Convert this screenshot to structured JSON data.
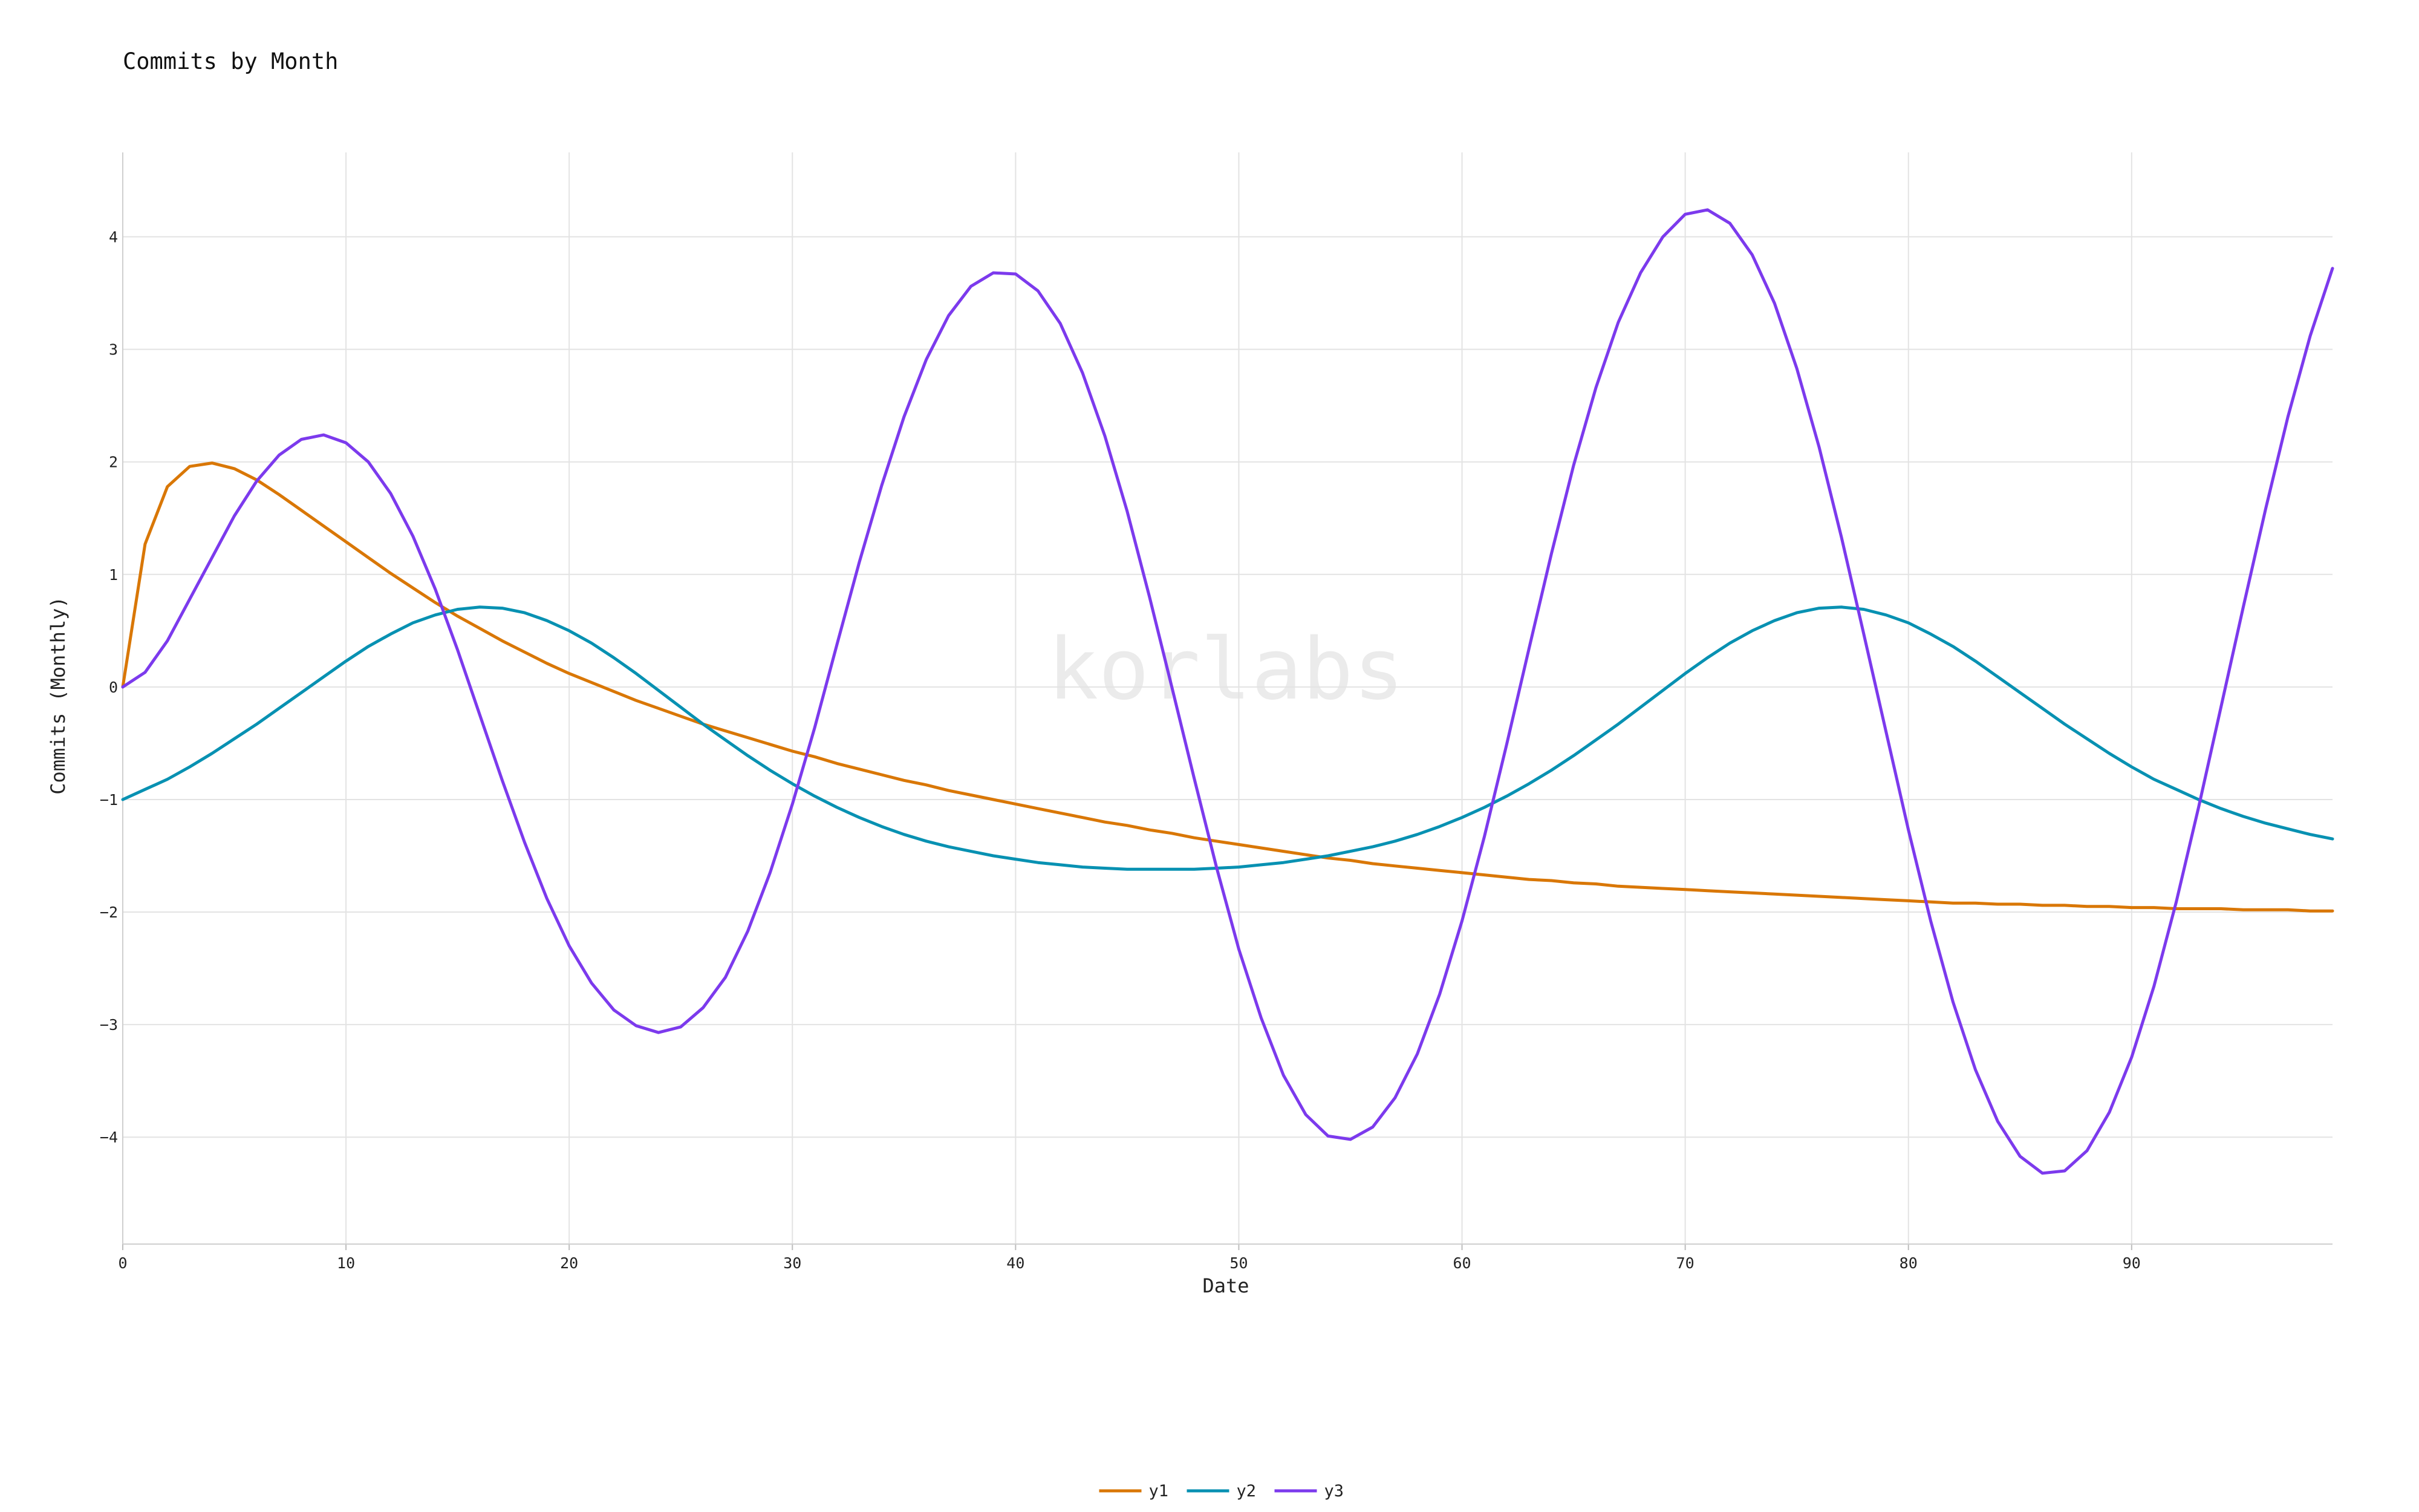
{
  "chart_data": {
    "type": "line",
    "title": "Commits by Month",
    "xlabel": "Date",
    "ylabel": "Commits (Monthly)",
    "watermark": "korlabs",
    "xlim": [
      0,
      99
    ],
    "ylim": [
      -4.95,
      4.75
    ],
    "x_ticks": [
      0,
      10,
      20,
      30,
      40,
      50,
      60,
      70,
      80,
      90
    ],
    "y_ticks": [
      -4,
      -3,
      -2,
      -1,
      0,
      1,
      2,
      3,
      4
    ],
    "y_tick_labels": [
      "−4",
      "−3",
      "−2",
      "−1",
      "0",
      "1",
      "2",
      "3",
      "4"
    ],
    "grid": true,
    "legend_position": "bottom-center",
    "x": [
      0,
      1,
      2,
      3,
      4,
      5,
      6,
      7,
      8,
      9,
      10,
      11,
      12,
      13,
      14,
      15,
      16,
      17,
      18,
      19,
      20,
      21,
      22,
      23,
      24,
      25,
      26,
      27,
      28,
      29,
      30,
      31,
      32,
      33,
      34,
      35,
      36,
      37,
      38,
      39,
      40,
      41,
      42,
      43,
      44,
      45,
      46,
      47,
      48,
      49,
      50,
      51,
      52,
      53,
      54,
      55,
      56,
      57,
      58,
      59,
      60,
      61,
      62,
      63,
      64,
      65,
      66,
      67,
      68,
      69,
      70,
      71,
      72,
      73,
      74,
      75,
      76,
      77,
      78,
      79,
      80,
      81,
      82,
      83,
      84,
      85,
      86,
      87,
      88,
      89,
      90,
      91,
      92,
      93,
      94,
      95,
      96,
      97,
      98,
      99
    ],
    "series": [
      {
        "name": "y1",
        "color": "#d97706",
        "values": [
          0,
          1.27,
          1.78,
          1.96,
          1.99,
          1.94,
          1.84,
          1.71,
          1.57,
          1.43,
          1.29,
          1.15,
          1.01,
          0.88,
          0.75,
          0.63,
          0.52,
          0.41,
          0.31,
          0.21,
          0.12,
          0.04,
          -0.04,
          -0.12,
          -0.19,
          -0.26,
          -0.33,
          -0.39,
          -0.45,
          -0.51,
          -0.57,
          -0.62,
          -0.68,
          -0.73,
          -0.78,
          -0.83,
          -0.87,
          -0.92,
          -0.96,
          -1.0,
          -1.04,
          -1.08,
          -1.12,
          -1.16,
          -1.2,
          -1.23,
          -1.27,
          -1.3,
          -1.34,
          -1.37,
          -1.4,
          -1.43,
          -1.46,
          -1.49,
          -1.52,
          -1.54,
          -1.57,
          -1.59,
          -1.61,
          -1.63,
          -1.65,
          -1.67,
          -1.69,
          -1.71,
          -1.72,
          -1.74,
          -1.75,
          -1.77,
          -1.78,
          -1.79,
          -1.8,
          -1.81,
          -1.82,
          -1.83,
          -1.84,
          -1.85,
          -1.86,
          -1.87,
          -1.88,
          -1.89,
          -1.9,
          -1.91,
          -1.92,
          -1.92,
          -1.93,
          -1.93,
          -1.94,
          -1.94,
          -1.95,
          -1.95,
          -1.96,
          -1.96,
          -1.97,
          -1.97,
          -1.97,
          -1.98,
          -1.98,
          -1.98,
          -1.99,
          -1.99
        ]
      },
      {
        "name": "y2",
        "color": "#0891b2",
        "values": [
          -1.0,
          -0.91,
          -0.82,
          -0.71,
          -0.59,
          -0.46,
          -0.33,
          -0.19,
          -0.05,
          0.09,
          0.23,
          0.36,
          0.47,
          0.57,
          0.64,
          0.69,
          0.71,
          0.7,
          0.66,
          0.59,
          0.5,
          0.39,
          0.26,
          0.12,
          -0.03,
          -0.18,
          -0.33,
          -0.47,
          -0.61,
          -0.74,
          -0.86,
          -0.97,
          -1.07,
          -1.16,
          -1.24,
          -1.31,
          -1.37,
          -1.42,
          -1.46,
          -1.5,
          -1.53,
          -1.56,
          -1.58,
          -1.6,
          -1.61,
          -1.62,
          -1.62,
          -1.62,
          -1.62,
          -1.61,
          -1.6,
          -1.58,
          -1.56,
          -1.53,
          -1.5,
          -1.46,
          -1.42,
          -1.37,
          -1.31,
          -1.24,
          -1.16,
          -1.07,
          -0.97,
          -0.86,
          -0.74,
          -0.61,
          -0.47,
          -0.33,
          -0.18,
          -0.03,
          0.12,
          0.26,
          0.39,
          0.5,
          0.59,
          0.66,
          0.7,
          0.71,
          0.69,
          0.64,
          0.57,
          0.47,
          0.36,
          0.23,
          0.09,
          -0.05,
          -0.19,
          -0.33,
          -0.46,
          -0.59,
          -0.71,
          -0.82,
          -0.91,
          -1.0,
          -1.08,
          -1.15,
          -1.21,
          -1.26,
          -1.31,
          -1.35
        ]
      },
      {
        "name": "y3",
        "color": "#7c3aed",
        "values": [
          0,
          0.13,
          0.41,
          0.78,
          1.15,
          1.52,
          1.83,
          2.06,
          2.2,
          2.24,
          2.17,
          2.0,
          1.72,
          1.34,
          0.87,
          0.33,
          -0.25,
          -0.83,
          -1.38,
          -1.88,
          -2.3,
          -2.63,
          -2.87,
          -3.01,
          -3.07,
          -3.02,
          -2.85,
          -2.58,
          -2.17,
          -1.65,
          -1.04,
          -0.36,
          0.38,
          1.11,
          1.79,
          2.4,
          2.91,
          3.3,
          3.56,
          3.68,
          3.67,
          3.52,
          3.23,
          2.79,
          2.23,
          1.56,
          0.8,
          0.0,
          -0.81,
          -1.6,
          -2.33,
          -2.94,
          -3.45,
          -3.8,
          -3.99,
          -4.02,
          -3.91,
          -3.65,
          -3.26,
          -2.73,
          -2.08,
          -1.33,
          -0.51,
          0.34,
          1.18,
          1.97,
          2.66,
          3.24,
          3.68,
          4.0,
          4.2,
          4.24,
          4.12,
          3.84,
          3.41,
          2.83,
          2.13,
          1.33,
          0.47,
          -0.4,
          -1.27,
          -2.08,
          -2.8,
          -3.4,
          -3.86,
          -4.17,
          -4.32,
          -4.3,
          -4.12,
          -3.78,
          -3.29,
          -2.66,
          -1.91,
          -1.07,
          -0.18,
          0.71,
          1.58,
          2.4,
          3.12,
          3.72
        ]
      }
    ]
  }
}
